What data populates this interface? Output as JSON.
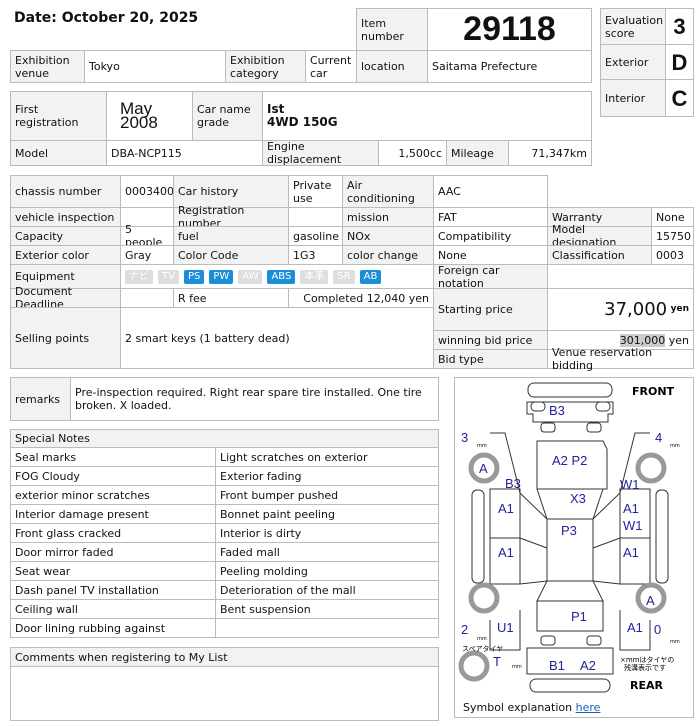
{
  "date": "Date: October 20, 2025",
  "item_number_label": "Item number",
  "item_number": "29118",
  "scores": [
    {
      "label": "Evaluation score",
      "value": "3"
    },
    {
      "label": "Exterior",
      "value": "D"
    },
    {
      "label": "Interior",
      "value": "C"
    }
  ],
  "venue_label": "Exhibition venue",
  "venue": "Tokyo",
  "category_label": "Exhibition category",
  "category": "Current car",
  "location_label": "location",
  "location": "Saitama Prefecture",
  "first_reg_label": "First registration",
  "first_reg_month": "May",
  "first_reg_year": "2008",
  "car_name_label": "Car name grade",
  "car_name": "Ist",
  "grade": "4WD 150G",
  "model_label": "Model",
  "model": "DBA-NCP115",
  "engine_label": "Engine displacement",
  "engine": "1,500cc",
  "mileage_label": "Mileage",
  "mileage": "71,347km",
  "spec": {
    "chassis_label": "chassis number",
    "chassis": "0003400",
    "history_label": "Car history",
    "history": "Private use",
    "ac_label": "Air conditioning",
    "ac": "AAC",
    "inspection_label": "vehicle inspection",
    "inspection": "",
    "regno_label": "Registration number",
    "regno": "",
    "mission_label": "mission",
    "mission": "FAT",
    "warranty_label": "Warranty",
    "warranty": "None",
    "capacity_label": "Capacity",
    "capacity": "5 people",
    "fuel_label": "fuel",
    "fuel": "gasoline",
    "nox_label": "NOx",
    "nox": "Compatibility",
    "model_des_label": "Model designation",
    "model_des": "15750",
    "color_label": "Exterior color",
    "color": "Gray",
    "color_code_label": "Color Code",
    "color_code": "1G3",
    "color_change_label": "color change",
    "color_change": "None",
    "class_label": "Classification",
    "class": "0003",
    "equipment_label": "Equipment",
    "equipment": [
      {
        "label": "ナビ",
        "on": false
      },
      {
        "label": "TV",
        "on": false
      },
      {
        "label": "PS",
        "on": true
      },
      {
        "label": "PW",
        "on": true
      },
      {
        "label": "AW",
        "on": false
      },
      {
        "label": "ABS",
        "on": true
      },
      {
        "label": "本革",
        "on": false
      },
      {
        "label": "SR",
        "on": false
      },
      {
        "label": "AB",
        "on": true
      }
    ],
    "foreign_label": "Foreign car notation",
    "foreign": "",
    "doc_label": "Document Deadline",
    "doc": "",
    "rfee_label": "R fee",
    "rfee": "Completed 12,040 yen",
    "selling_label": "Selling points",
    "selling": "2 smart keys (1 battery dead)",
    "start_label": "Starting price",
    "start": "37,000",
    "yen": "yen",
    "win_label": "winning bid price",
    "win": "301,000",
    "bidtype_label": "Bid type",
    "bidtype": "Venue reservation bidding"
  },
  "remarks_label": "remarks",
  "remarks": "Pre-inspection required. Right rear spare tire installed. One tire broken. X loaded.",
  "special_title": "Special Notes",
  "special": [
    [
      "Seal marks",
      "Light scratches on exterior"
    ],
    [
      "FOG Cloudy",
      "Exterior fading"
    ],
    [
      "exterior minor scratches",
      "Front bumper pushed"
    ],
    [
      "Interior damage present",
      "Bonnet paint peeling"
    ],
    [
      "Front glass cracked",
      "Interior is dirty"
    ],
    [
      "Door mirror faded",
      "Faded mall"
    ],
    [
      "Seat wear",
      "Peeling molding"
    ],
    [
      "Dash panel TV installation",
      "Deterioration of the mall"
    ],
    [
      "Ceiling wall",
      "Bent suspension"
    ],
    [
      "Door lining rubbing against",
      ""
    ]
  ],
  "comments_title": "Comments when registering to My List",
  "diagram": {
    "front": "FRONT",
    "rear": "REAR",
    "labels": {
      "b3_front": "B3",
      "a2p2": "A2  P2",
      "b3_left": "B3",
      "w1_right": "W1",
      "x3": "X3",
      "a1_lf": "A1",
      "a1_rf": "A1",
      "w1_rf": "W1",
      "p3": "P3",
      "a1_lr": "A1",
      "a1_rr": "A1",
      "p1": "P1",
      "u1": "U1",
      "a1_rear": "A1",
      "b1": "B1",
      "a2_rear": "A2",
      "t": "T",
      "wheel_lf": "A",
      "wheel_rr": "A"
    },
    "tire_depth": {
      "lf": "3",
      "rf": "4",
      "lr": "2",
      "rr": "0"
    },
    "mm": "mm",
    "spare": "スペアタイヤ",
    "note1": "×mmはタイヤの",
    "note2": "残溝表示です",
    "symbol_label": "Symbol explanation",
    "symbol_link": "here"
  }
}
